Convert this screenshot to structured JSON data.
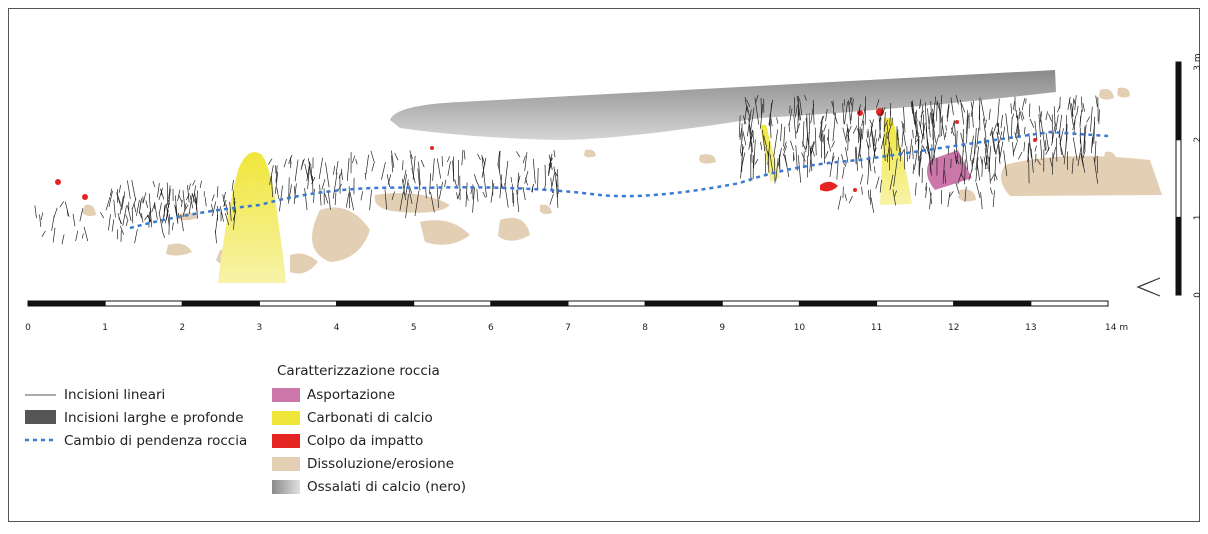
{
  "scale": {
    "horizontal": [
      "0",
      "1",
      "2",
      "3",
      "4",
      "5",
      "6",
      "7",
      "8",
      "9",
      "10",
      "11",
      "12",
      "13",
      "14 m"
    ],
    "vertical": [
      "0",
      "1",
      "2",
      "3 m"
    ]
  },
  "legend_left": [
    "Incisioni lineari",
    "Incisioni larghe e profonde",
    "Cambio di pendenza roccia"
  ],
  "legend_right": {
    "title": "Caratterizzazione roccia",
    "items": [
      "Asportazione",
      "Carbonati di calcio",
      "Colpo da impatto",
      "Dissoluzione/erosione",
      "Ossalati di calcio (nero)"
    ]
  }
}
